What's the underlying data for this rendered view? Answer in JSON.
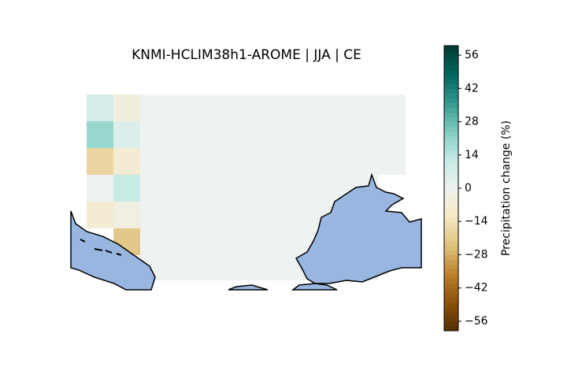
{
  "chart_data": {
    "type": "heatmap",
    "title": "KNMI-HCLIM38h1-AROME | JJA | CE",
    "values": [
      [
        8,
        -5
      ],
      [
        20,
        6
      ],
      [
        -18,
        -8
      ],
      [
        0,
        12
      ],
      [
        -8,
        -4
      ],
      [
        null,
        -22
      ]
    ],
    "colorbar_label": "Precipitation change (%)",
    "ylim": [
      -60,
      60
    ],
    "yticks": [
      {
        "value": -56,
        "label": "−56"
      },
      {
        "value": -42,
        "label": "−42"
      },
      {
        "value": -28,
        "label": "−28"
      },
      {
        "value": -14,
        "label": "−14"
      },
      0,
      14,
      28,
      42,
      56
    ],
    "colormap": [
      "#543005",
      "#8c510a",
      "#bf812d",
      "#dfc27d",
      "#f6e8c3",
      "#eef2f0",
      "#c7eae5",
      "#80cdc1",
      "#35978f",
      "#01665e",
      "#003c30"
    ]
  }
}
